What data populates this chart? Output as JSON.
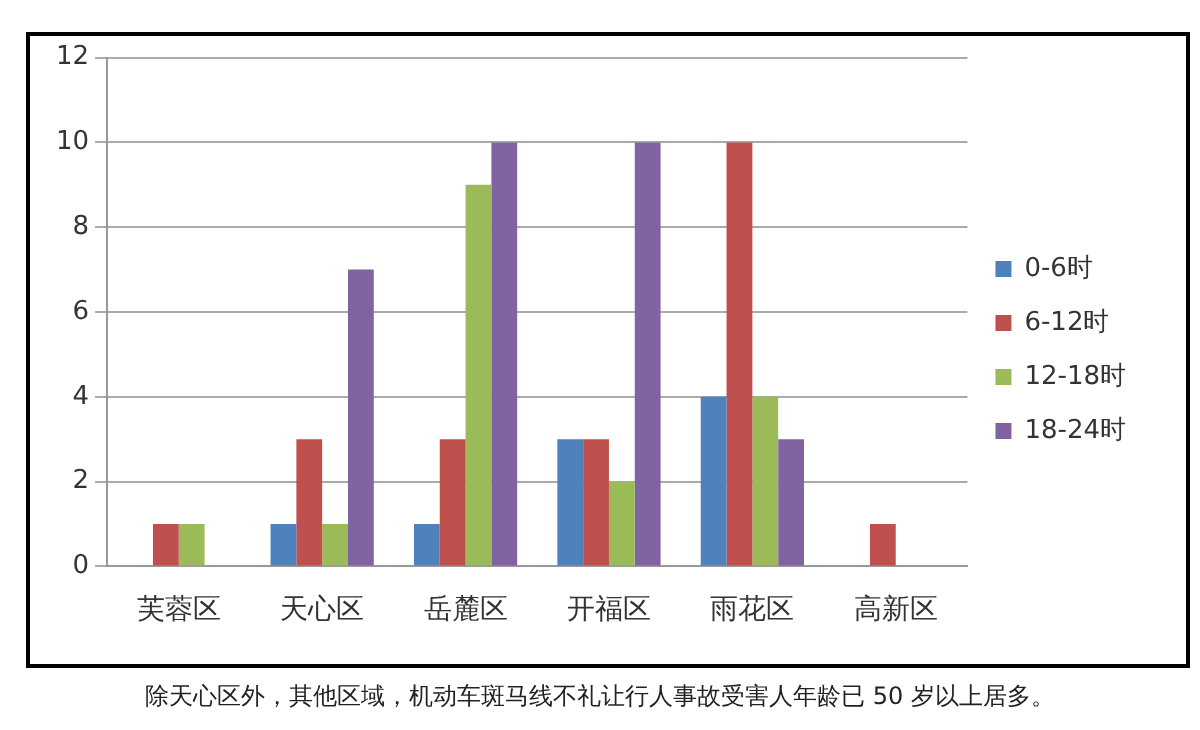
{
  "chart_data": {
    "type": "bar",
    "categories": [
      "芙蓉区",
      "天心区",
      "岳麓区",
      "开福区",
      "雨花区",
      "高新区"
    ],
    "series": [
      {
        "name": "0-6时",
        "color": "#4f81bd",
        "values": [
          0,
          1,
          1,
          3,
          4,
          0
        ]
      },
      {
        "name": "6-12时",
        "color": "#c0504d",
        "values": [
          1,
          3,
          3,
          3,
          10,
          1
        ]
      },
      {
        "name": "12-18时",
        "color": "#9bbb59",
        "values": [
          1,
          1,
          9,
          2,
          4,
          0
        ]
      },
      {
        "name": "18-24时",
        "color": "#8064a2",
        "values": [
          0,
          7,
          10,
          10,
          3,
          0
        ]
      }
    ],
    "ylim": [
      0,
      12
    ],
    "yticks": [
      0,
      2,
      4,
      6,
      8,
      10,
      12
    ],
    "grid": "y",
    "legend": "right",
    "annotations": [
      "除天心区外，其他区域，机动车斑马线不礼让行人事故受害人年龄已 50 岁以上居多。"
    ]
  }
}
